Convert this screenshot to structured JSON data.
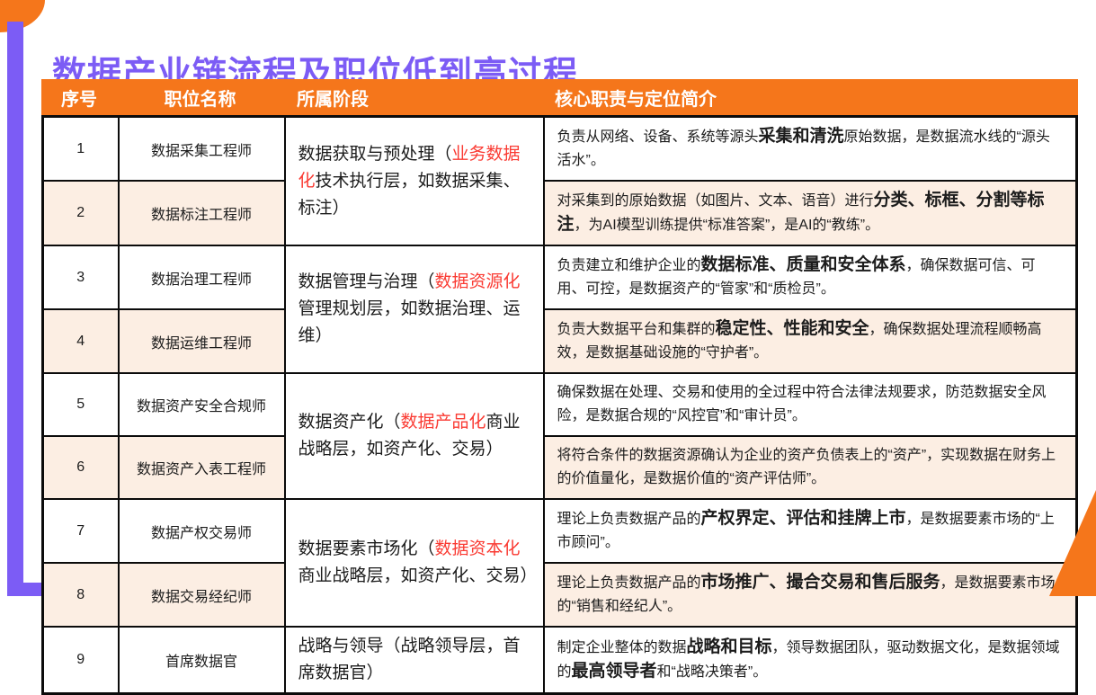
{
  "page": {
    "title": "数据产业链流程及职位低到高过程"
  },
  "colors": {
    "accent_purple": "#7C5CF5",
    "accent_orange": "#F5761B",
    "row_alt_peach": "#FCEEE3",
    "highlight_red": "#FA3B33",
    "border_black": "#0B0B0B",
    "header_text": "#FFFFFF"
  },
  "table": {
    "headers": [
      "序号",
      "职位名称",
      "所属阶段",
      "核心职责与定位简介"
    ],
    "stages": [
      {
        "rows": [
          1,
          2
        ],
        "segments": [
          {
            "t": "数据获取与预处理（"
          },
          {
            "t": "业务数据化",
            "red": true
          },
          {
            "t": "技术执行层，如数据采集、标注）"
          }
        ]
      },
      {
        "rows": [
          3,
          4
        ],
        "segments": [
          {
            "t": "数据管理与治理（"
          },
          {
            "t": "数据资源化",
            "red": true
          },
          {
            "t": "管理规划层，如数据治理、运维）"
          }
        ]
      },
      {
        "rows": [
          5,
          6
        ],
        "segments": [
          {
            "t": "数据资产化（"
          },
          {
            "t": "数据产品化",
            "red": true
          },
          {
            "t": "商业战略层，如资产化、交易）"
          }
        ]
      },
      {
        "rows": [
          7,
          8
        ],
        "segments": [
          {
            "t": "数据要素市场化（"
          },
          {
            "t": "数据资本化",
            "red": true
          },
          {
            "t": "商业战略层，如资产化、交易）"
          }
        ]
      },
      {
        "rows": [
          9
        ],
        "segments": [
          {
            "t": "战略与领导（战略领导层，首席数据官）"
          }
        ]
      }
    ],
    "rows": [
      {
        "num": "1",
        "title": "数据采集工程师",
        "desc": [
          {
            "t": "负责从网络、设备、系统等源头"
          },
          {
            "t": "采集和清洗",
            "b": true
          },
          {
            "t": "原始数据，是数据流水线的“源头活水”。"
          }
        ]
      },
      {
        "num": "2",
        "title": "数据标注工程师",
        "desc": [
          {
            "t": "对采集到的原始数据（如图片、文本、语音）进行"
          },
          {
            "t": "分类、标框、分割等标注",
            "b": true
          },
          {
            "t": "，为AI模型训练提供“标准答案”，是AI的“教练”。"
          }
        ]
      },
      {
        "num": "3",
        "title": "数据治理工程师",
        "desc": [
          {
            "t": "负责建立和维护企业的"
          },
          {
            "t": "数据标准、质量和安全体系",
            "b": true
          },
          {
            "t": "，确保数据可信、可用、可控，是数据资产的“管家”和“质检员”。"
          }
        ]
      },
      {
        "num": "4",
        "title": "数据运维工程师",
        "desc": [
          {
            "t": "负责大数据平台和集群的"
          },
          {
            "t": "稳定性、性能和安全",
            "b": true
          },
          {
            "t": "，确保数据处理流程顺畅高效，是数据基础设施的“守护者”。"
          }
        ]
      },
      {
        "num": "5",
        "title": "数据资产安全合规师",
        "desc": [
          {
            "t": "确保数据在处理、交易和使用的全过程中符合法律法规要求，防范数据安全风险，是数据合规的“风控官”和“审计员”。"
          }
        ]
      },
      {
        "num": "6",
        "title": "数据资产入表工程师",
        "desc": [
          {
            "t": "将符合条件的数据资源确认为企业的资产负债表上的“资产”，实现数据在财务上的价值量化，是数据价值的“资产评估师”。"
          }
        ]
      },
      {
        "num": "7",
        "title": "数据产权交易师",
        "desc": [
          {
            "t": "理论上负责数据产品的"
          },
          {
            "t": "产权界定、评估和挂牌上市",
            "b": true
          },
          {
            "t": "，是数据要素市场的“上市顾问”。"
          }
        ]
      },
      {
        "num": "8",
        "title": "数据交易经纪师",
        "desc": [
          {
            "t": "理论上负责数据产品的"
          },
          {
            "t": "市场推广、撮合交易和售后服务",
            "b": true
          },
          {
            "t": "，是数据要素市场的“销售和经纪人”。"
          }
        ]
      },
      {
        "num": "9",
        "title": "首席数据官",
        "desc": [
          {
            "t": "制定企业整体的数据"
          },
          {
            "t": "战略和目标",
            "b": true
          },
          {
            "t": "，领导数据团队，驱动数据文化，是数据领域的"
          },
          {
            "t": "最高领导者",
            "b": true
          },
          {
            "t": "和“战略决策者”。"
          }
        ]
      }
    ]
  }
}
